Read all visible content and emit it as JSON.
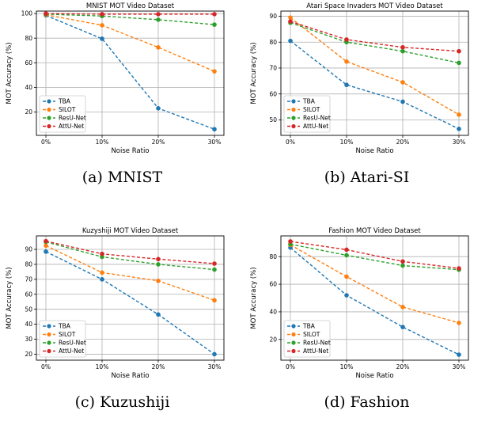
{
  "colors": {
    "TBA": "#1f77b4",
    "SILOT": "#ff7f0e",
    "ResU-Net": "#2ca02c",
    "AttU-Net": "#d62728",
    "grid": "#b0b0b0"
  },
  "chart_data": [
    {
      "type": "line",
      "title": "MNIST MOT Video Dataset",
      "caption": "(a) MNIST",
      "xlabel": "Noise Ratio",
      "ylabel": "MOT Accuracy (%)",
      "categories": [
        "0%",
        "10%",
        "20%",
        "30%"
      ],
      "ylim": [
        1,
        102
      ],
      "yticks": [
        20,
        40,
        60,
        80,
        100
      ],
      "grid": true,
      "legend": "lower-left",
      "series": [
        {
          "name": "TBA",
          "style": "dashed",
          "values": [
            98.5,
            79.5,
            23,
            6
          ]
        },
        {
          "name": "SILOT",
          "style": "dashed",
          "values": [
            99,
            90.5,
            72.5,
            53
          ]
        },
        {
          "name": "ResU-Net",
          "style": "dashed",
          "values": [
            99.5,
            98,
            95,
            91
          ]
        },
        {
          "name": "AttU-Net",
          "style": "dashed",
          "values": [
            100,
            99.5,
            99.5,
            99.5
          ]
        }
      ]
    },
    {
      "type": "line",
      "title": "Atari Space Invaders MOT Video Dataset",
      "caption": "(b) Atari-SI",
      "xlabel": "Noise Ratio",
      "ylabel": "MOT Accuracy (%)",
      "categories": [
        "0%",
        "10%",
        "20%",
        "30%"
      ],
      "ylim": [
        44,
        92
      ],
      "yticks": [
        50,
        60,
        70,
        80,
        90
      ],
      "grid": true,
      "legend": "lower-left",
      "series": [
        {
          "name": "TBA",
          "style": "dashed",
          "values": [
            80.5,
            63.5,
            57,
            46.5
          ]
        },
        {
          "name": "SILOT",
          "style": "dashed",
          "values": [
            89.5,
            72.5,
            64.5,
            52
          ]
        },
        {
          "name": "ResU-Net",
          "style": "dashed",
          "values": [
            87.5,
            80,
            76.5,
            72
          ]
        },
        {
          "name": "AttU-Net",
          "style": "dashed",
          "values": [
            88,
            81,
            78,
            76.5
          ]
        }
      ]
    },
    {
      "type": "line",
      "title": "Kuzyshiji MOT Video Dataset",
      "caption": "(c) Kuzushiji",
      "xlabel": "Noise Ratio",
      "ylabel": "MOT Accuracy (%)",
      "categories": [
        "0%",
        "10%",
        "20%",
        "30%"
      ],
      "ylim": [
        16,
        99
      ],
      "yticks": [
        20,
        30,
        40,
        50,
        60,
        70,
        80,
        90
      ],
      "grid": true,
      "legend": "lower-left",
      "series": [
        {
          "name": "TBA",
          "style": "dashed",
          "values": [
            88.5,
            70,
            46.5,
            20
          ]
        },
        {
          "name": "SILOT",
          "style": "dashed",
          "values": [
            92.5,
            74.5,
            69,
            56
          ]
        },
        {
          "name": "ResU-Net",
          "style": "dashed",
          "values": [
            95,
            85,
            80,
            76.5
          ]
        },
        {
          "name": "AttU-Net",
          "style": "dashed",
          "values": [
            95.5,
            87,
            83.5,
            80.5
          ]
        }
      ]
    },
    {
      "type": "line",
      "title": "Fashion MOT Video Dataset",
      "caption": "(d) Fashion",
      "xlabel": "Noise Ratio",
      "ylabel": "MOT Accuracy (%)",
      "categories": [
        "0%",
        "10%",
        "20%",
        "30%"
      ],
      "ylim": [
        5,
        95
      ],
      "yticks": [
        20,
        40,
        60,
        80
      ],
      "grid": true,
      "legend": "lower-left",
      "series": [
        {
          "name": "TBA",
          "style": "dashed",
          "values": [
            86.5,
            52,
            29,
            9
          ]
        },
        {
          "name": "SILOT",
          "style": "dashed",
          "values": [
            88.5,
            65.5,
            43.5,
            32
          ]
        },
        {
          "name": "ResU-Net",
          "style": "dashed",
          "values": [
            89,
            81,
            73.5,
            70.5
          ]
        },
        {
          "name": "AttU-Net",
          "style": "dashed",
          "values": [
            91,
            85,
            76.5,
            71.5
          ]
        }
      ]
    }
  ]
}
